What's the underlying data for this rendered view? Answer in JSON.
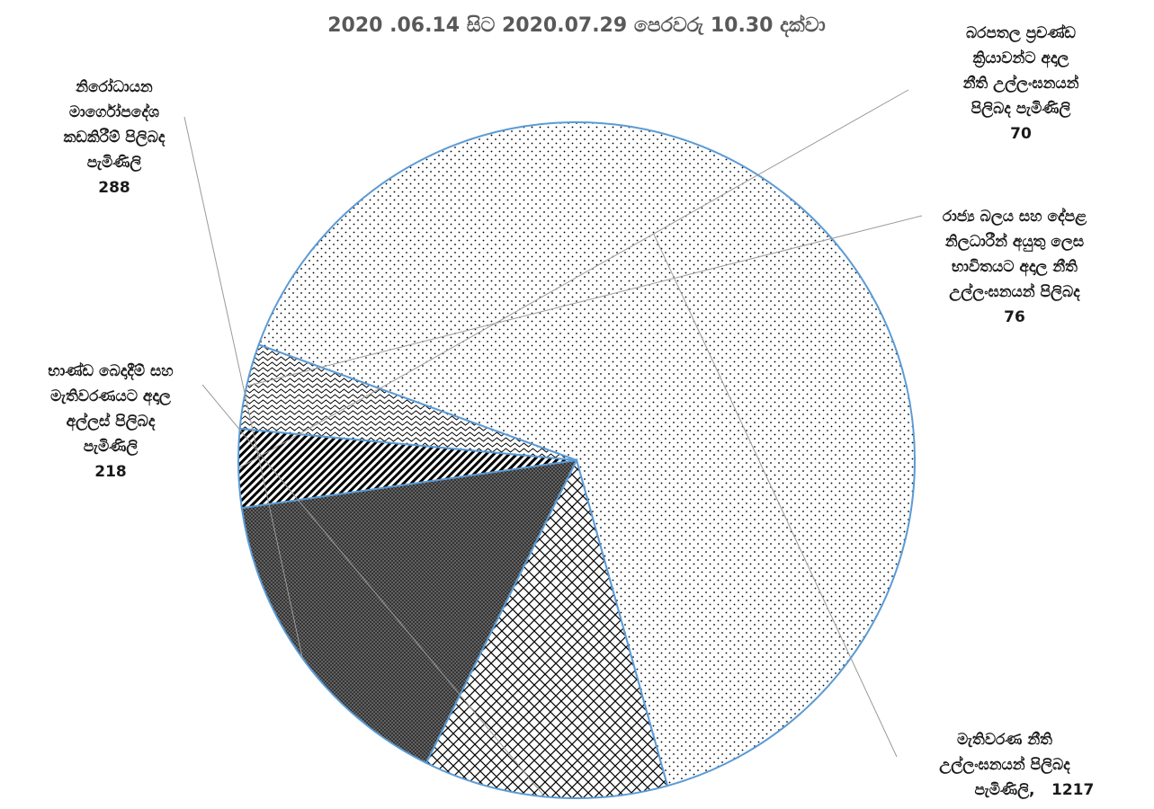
{
  "chart_data": {
    "type": "pie",
    "title": "2020 .06.14 සිට 2020.07.29 පෙරවරු 10.30 දක්වා",
    "slices": [
      {
        "label": "මැතිවරණ නීති උල්ලංඝනයන් පිලිබද පැමිණිලි",
        "value": 1217,
        "value_text": "1217",
        "pattern": "dots"
      },
      {
        "label": "භාණ්ඩ බෙදාදීම් සහ මැතිවරණයට අදාල අල්ලස් පිලිබද පැමිණිලි",
        "value": 218,
        "value_text": "218",
        "pattern": "crosshatch"
      },
      {
        "label": "නිරෝධායන මාර්ගෝපදේශ කඩකිරීම් පිලිබද පැමිණිලි",
        "value": 288,
        "value_text": "288",
        "pattern": "dense-grid"
      },
      {
        "label": "බරපතල ප්‍රචණ්ඩ ක්‍රියාවන්ට අදාල නීති උල්ලංඝනයන් පිලිබද පැමිණිලි",
        "value": 70,
        "value_text": "70",
        "pattern": "diagonal"
      },
      {
        "label": "රාජ්‍ය බලය සහ දේපළ නිලධාරීන් අයුතු ලෙස භාවිතයට අදාල නීති උල්ලංඝනයන් පිලිබද",
        "value": 76,
        "value_text": "76",
        "pattern": "wave"
      }
    ],
    "legend": "none",
    "colors": {
      "outline": "#5b9bd5",
      "pattern": "#000000",
      "leader": "#9a9a9a"
    }
  }
}
